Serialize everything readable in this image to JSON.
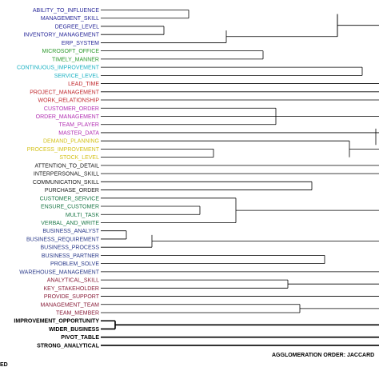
{
  "leaves": [
    {
      "label": "ABILITY_TO_INFLUENCE",
      "color": "#2a2a9a",
      "bold": false
    },
    {
      "label": "MANAGEMENT_SKILL",
      "color": "#2a2a9a",
      "bold": false
    },
    {
      "label": "DEGREE_LEVEL",
      "color": "#2a2a9a",
      "bold": false
    },
    {
      "label": "INVENTORY_MANAGEMENT",
      "color": "#2a2a9a",
      "bold": false
    },
    {
      "label": "ERP_SYSTEM",
      "color": "#2a2a9a",
      "bold": false
    },
    {
      "label": "MICROSOFT_OFFICE",
      "color": "#2e9a2e",
      "bold": false
    },
    {
      "label": "TIMELY_MANNER",
      "color": "#2e9a2e",
      "bold": false
    },
    {
      "label": "CONTINUOUS_IMPROVEMENT",
      "color": "#1fb3c4",
      "bold": false
    },
    {
      "label": "SERVICE_LEVEL",
      "color": "#1fb3c4",
      "bold": false
    },
    {
      "label": "LEAD_TIME",
      "color": "#c0282d",
      "bold": false
    },
    {
      "label": "PROJECT_MANAGEMENT",
      "color": "#c0282d",
      "bold": false
    },
    {
      "label": "WORK_RELATIONSHIP",
      "color": "#c0282d",
      "bold": false
    },
    {
      "label": "CUSTOMER_ORDER",
      "color": "#b22fb2",
      "bold": false
    },
    {
      "label": "ORDER_MANAGEMENT",
      "color": "#b22fb2",
      "bold": false
    },
    {
      "label": "TEAM_PLAYER",
      "color": "#b22fb2",
      "bold": false
    },
    {
      "label": "MASTER_DATA",
      "color": "#b22fb2",
      "bold": false
    },
    {
      "label": "DEMAND_PLANNING",
      "color": "#d4c21c",
      "bold": false
    },
    {
      "label": "PROCESS_IMPROVEMENT",
      "color": "#d4c21c",
      "bold": false
    },
    {
      "label": "STOCK_LEVEL",
      "color": "#d4c21c",
      "bold": false
    },
    {
      "label": "ATTENTION_TO_DETAIL",
      "color": "#222222",
      "bold": false
    },
    {
      "label": "INTERPERSONAL_SKILL",
      "color": "#222222",
      "bold": false
    },
    {
      "label": "COMMUNICATION_SKILL",
      "color": "#222222",
      "bold": false
    },
    {
      "label": "PURCHASE_ORDER",
      "color": "#222222",
      "bold": false
    },
    {
      "label": "CUSTOMER_SERVICE",
      "color": "#1f7a4a",
      "bold": false
    },
    {
      "label": "ENSURE_CUSTOMER",
      "color": "#1f7a4a",
      "bold": false
    },
    {
      "label": "MULTI_TASK",
      "color": "#1f7a4a",
      "bold": false
    },
    {
      "label": "VERBAL_AND_WRITE",
      "color": "#1f7a4a",
      "bold": false
    },
    {
      "label": "BUSINESS_ANALYST",
      "color": "#2a3a8a",
      "bold": false
    },
    {
      "label": "BUSINESS_REQUIREMENT",
      "color": "#2a3a8a",
      "bold": false
    },
    {
      "label": "BUSINESS_PROCESS",
      "color": "#2a3a8a",
      "bold": false
    },
    {
      "label": "BUSINESS_PARTNER",
      "color": "#2a3a8a",
      "bold": false
    },
    {
      "label": "PROBLEM_SOLVE",
      "color": "#2a3a8a",
      "bold": false
    },
    {
      "label": "WAREHOUSE_MANAGEMENT",
      "color": "#2a3a8a",
      "bold": false
    },
    {
      "label": "ANALYTICAL_SKILL",
      "color": "#8a1f3a",
      "bold": false
    },
    {
      "label": "KEY_STAKEHOLDER",
      "color": "#8a1f3a",
      "bold": false
    },
    {
      "label": "PROVIDE_SUPPORT",
      "color": "#8a1f3a",
      "bold": false
    },
    {
      "label": "MANAGEMENT_TEAM",
      "color": "#8a1f3a",
      "bold": false
    },
    {
      "label": "TEAM_MEMBER",
      "color": "#8a1f3a",
      "bold": false
    },
    {
      "label": "IMPROVEMENT_OPPORTUNITY",
      "color": "#000000",
      "bold": true
    },
    {
      "label": "WIDER_BUSINESS",
      "color": "#000000",
      "bold": true
    },
    {
      "label": "PIVOT_TABLE",
      "color": "#000000",
      "bold": true
    },
    {
      "label": "STRONG_ANALYTICAL",
      "color": "#000000",
      "bold": true
    }
  ],
  "footer": {
    "agglomeration": "AGGLOMERATION ORDER: JACCARD",
    "left_fragment": "ED"
  }
}
